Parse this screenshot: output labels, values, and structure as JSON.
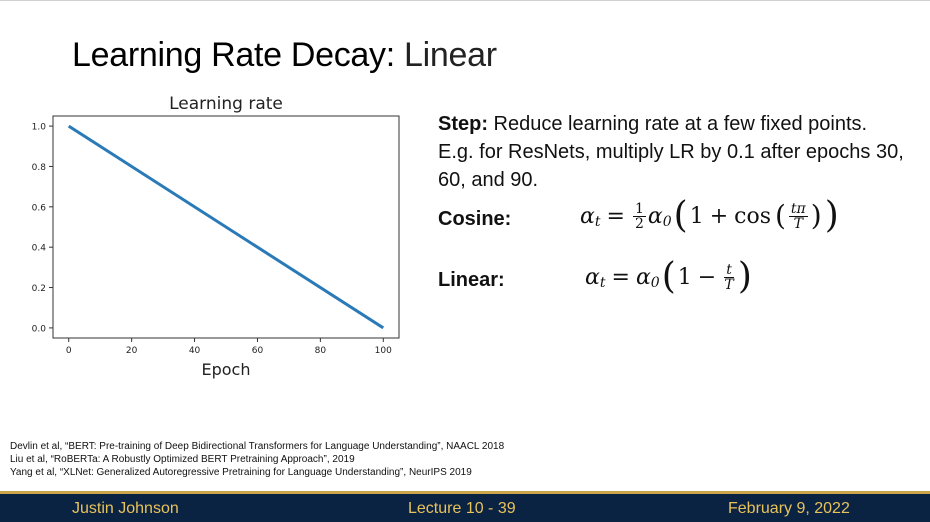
{
  "slide": {
    "title_main": "Learning Rate Decay",
    "title_sep": ":",
    "title_sub": " Linear"
  },
  "text": {
    "step_bold": "Step:",
    "step_rest": " Reduce learning rate at a few fixed points. E.g. for ResNets, multiply LR by 0.1 after epochs 30, 60, and 90.",
    "cosine_label": "Cosine:",
    "linear_label": "Linear:"
  },
  "equations": {
    "alpha": "α",
    "sub_t": "t",
    "sub_0": "0",
    "equals": "=",
    "one": "1",
    "two": "2",
    "plus": "+",
    "minus": "−",
    "cos": "cos",
    "t_pi": "tπ",
    "T": "T",
    "t": "t",
    "lparen": "(",
    "rparen": ")"
  },
  "references": [
    "Devlin et al, “BERT: Pre-training of Deep Bidirectional Transformers for Language Understanding”, NAACL 2018",
    "Liu et al, “RoBERTa: A Robustly Optimized BERT Pretraining Approach”, 2019",
    "Yang et al, “XLNet: Generalized Autoregressive Pretraining for Language Understanding”, NeurIPS 2019"
  ],
  "footer": {
    "author": "Justin Johnson",
    "lecture": "Lecture 10 - 39",
    "date": "February 9, 2022"
  },
  "chart_data": {
    "type": "line",
    "title": "Learning rate",
    "xlabel": "Epoch",
    "ylabel": "",
    "xlim": [
      -5,
      105
    ],
    "ylim": [
      -0.05,
      1.05
    ],
    "xticks": [
      0,
      20,
      40,
      60,
      80,
      100
    ],
    "yticks": [
      0.0,
      0.2,
      0.4,
      0.6,
      0.8,
      1.0
    ],
    "ytick_labels": [
      "0.0",
      "0.2",
      "0.4",
      "0.6",
      "0.8",
      "1.0"
    ],
    "series": [
      {
        "x": [
          0,
          100
        ],
        "values": [
          1.0,
          0.0
        ],
        "color": "#2a7ab7"
      }
    ]
  }
}
